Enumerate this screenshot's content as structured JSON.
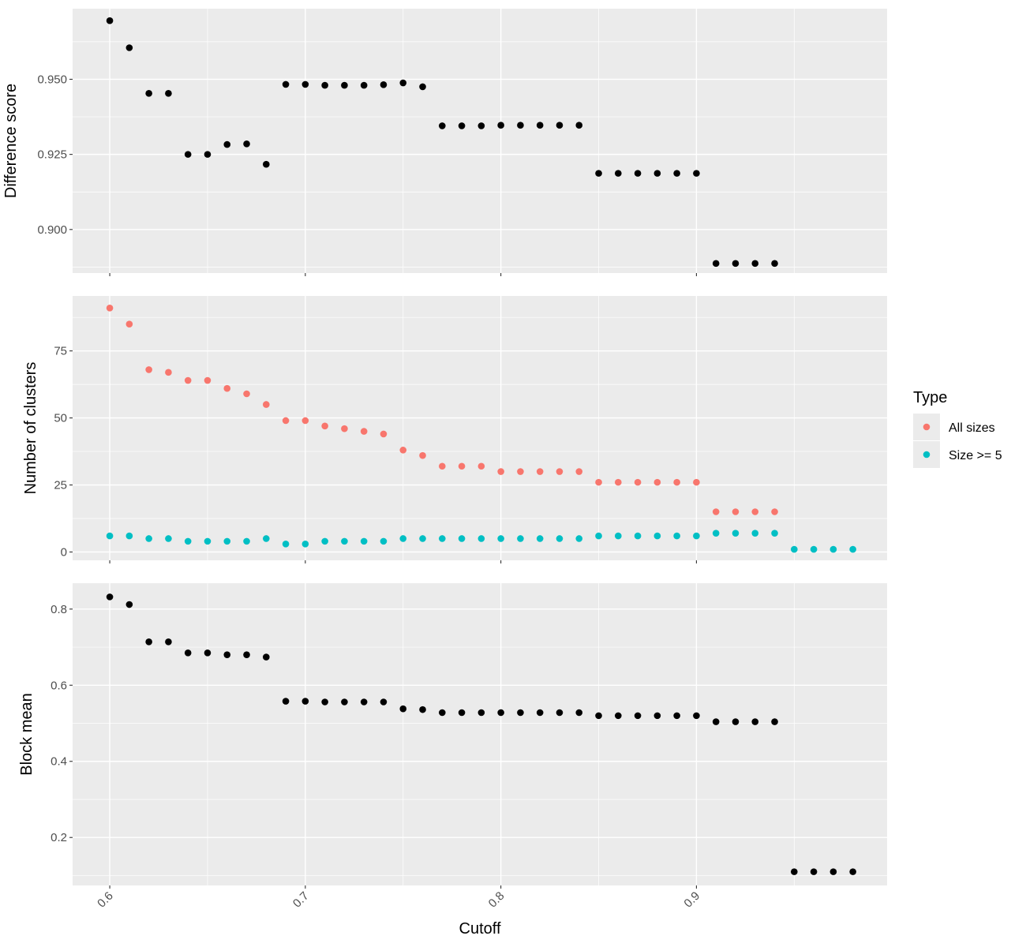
{
  "chart_data": {
    "type": "scatter",
    "x_title": "Cutoff",
    "x_ticks": [
      "0.6",
      "0.7",
      "0.8",
      "0.9"
    ],
    "x_tick_values": [
      0.6,
      0.7,
      0.8,
      0.9
    ],
    "xlim": [
      0.581,
      0.9975
    ],
    "grid": true,
    "panel_background": "#ebebeb",
    "legend": {
      "title": "Type",
      "placement": "right",
      "entries": [
        {
          "label": "All sizes",
          "color": "#f8766d"
        },
        {
          "label": "Size >= 5",
          "color": "#00bfc4"
        }
      ]
    },
    "panels": [
      {
        "ylabel": "Difference score",
        "y_ticks": [
          "0.900",
          "0.925",
          "0.950"
        ],
        "y_tick_values": [
          0.9,
          0.925,
          0.95
        ],
        "ylim": [
          0.8855,
          0.9735
        ],
        "series": [
          {
            "color": "#000000",
            "x": [
              0.6,
              0.61,
              0.62,
              0.63,
              0.64,
              0.65,
              0.66,
              0.67,
              0.68,
              0.69,
              0.7,
              0.71,
              0.72,
              0.73,
              0.74,
              0.75,
              0.76,
              0.77,
              0.78,
              0.79,
              0.8,
              0.81,
              0.82,
              0.83,
              0.84,
              0.85,
              0.86,
              0.87,
              0.88,
              0.89,
              0.9,
              0.91,
              0.92,
              0.93,
              0.94
            ],
            "y": [
              0.9695,
              0.9605,
              0.9453,
              0.9453,
              0.925,
              0.925,
              0.9283,
              0.9285,
              0.9217,
              0.9483,
              0.9483,
              0.948,
              0.948,
              0.948,
              0.9482,
              0.9488,
              0.9475,
              0.9345,
              0.9345,
              0.9345,
              0.9347,
              0.9347,
              0.9347,
              0.9347,
              0.9347,
              0.9187,
              0.9187,
              0.9187,
              0.9187,
              0.9187,
              0.9187,
              0.8887,
              0.8887,
              0.8887,
              0.8887
            ]
          }
        ]
      },
      {
        "ylabel": "Number of clusters",
        "y_ticks": [
          "0",
          "25",
          "50",
          "75"
        ],
        "y_tick_values": [
          0,
          25,
          50,
          75
        ],
        "ylim": [
          -3.1,
          95.5
        ],
        "series": [
          {
            "name": "All sizes",
            "color": "#f8766d",
            "x": [
              0.6,
              0.61,
              0.62,
              0.63,
              0.64,
              0.65,
              0.66,
              0.67,
              0.68,
              0.69,
              0.7,
              0.71,
              0.72,
              0.73,
              0.74,
              0.75,
              0.76,
              0.77,
              0.78,
              0.79,
              0.8,
              0.81,
              0.82,
              0.83,
              0.84,
              0.85,
              0.86,
              0.87,
              0.88,
              0.89,
              0.9,
              0.91,
              0.92,
              0.93,
              0.94
            ],
            "y": [
              91,
              85,
              68,
              67,
              64,
              64,
              61,
              59,
              55,
              49,
              49,
              47,
              46,
              45,
              44,
              38,
              36,
              32,
              32,
              32,
              30,
              30,
              30,
              30,
              30,
              26,
              26,
              26,
              26,
              26,
              26,
              15,
              15,
              15,
              15
            ]
          },
          {
            "name": "Size >= 5",
            "color": "#00bfc4",
            "x": [
              0.6,
              0.61,
              0.62,
              0.63,
              0.64,
              0.65,
              0.66,
              0.67,
              0.68,
              0.69,
              0.7,
              0.71,
              0.72,
              0.73,
              0.74,
              0.75,
              0.76,
              0.77,
              0.78,
              0.79,
              0.8,
              0.81,
              0.82,
              0.83,
              0.84,
              0.85,
              0.86,
              0.87,
              0.88,
              0.89,
              0.9,
              0.91,
              0.92,
              0.93,
              0.94,
              0.95,
              0.96,
              0.97,
              0.98
            ],
            "y": [
              6,
              6,
              5,
              5,
              4,
              4,
              4,
              4,
              5,
              3,
              3,
              4,
              4,
              4,
              4,
              5,
              5,
              5,
              5,
              5,
              5,
              5,
              5,
              5,
              5,
              6,
              6,
              6,
              6,
              6,
              6,
              7,
              7,
              7,
              7,
              1,
              1,
              1,
              1
            ]
          }
        ]
      },
      {
        "ylabel": "Block mean",
        "y_ticks": [
          "0.2",
          "0.4",
          "0.6",
          "0.8"
        ],
        "y_tick_values": [
          0.2,
          0.4,
          0.6,
          0.8
        ],
        "ylim": [
          0.074,
          0.868
        ],
        "series": [
          {
            "color": "#000000",
            "x": [
              0.6,
              0.61,
              0.62,
              0.63,
              0.64,
              0.65,
              0.66,
              0.67,
              0.68,
              0.69,
              0.7,
              0.71,
              0.72,
              0.73,
              0.74,
              0.75,
              0.76,
              0.77,
              0.78,
              0.79,
              0.8,
              0.81,
              0.82,
              0.83,
              0.84,
              0.85,
              0.86,
              0.87,
              0.88,
              0.89,
              0.9,
              0.91,
              0.92,
              0.93,
              0.94,
              0.95,
              0.96,
              0.97,
              0.98
            ],
            "y": [
              0.832,
              0.812,
              0.714,
              0.714,
              0.685,
              0.685,
              0.68,
              0.68,
              0.674,
              0.558,
              0.558,
              0.556,
              0.556,
              0.556,
              0.556,
              0.538,
              0.536,
              0.528,
              0.528,
              0.528,
              0.528,
              0.528,
              0.528,
              0.528,
              0.528,
              0.52,
              0.52,
              0.52,
              0.52,
              0.52,
              0.52,
              0.504,
              0.504,
              0.504,
              0.504,
              0.11,
              0.11,
              0.11,
              0.11
            ]
          }
        ]
      }
    ]
  }
}
